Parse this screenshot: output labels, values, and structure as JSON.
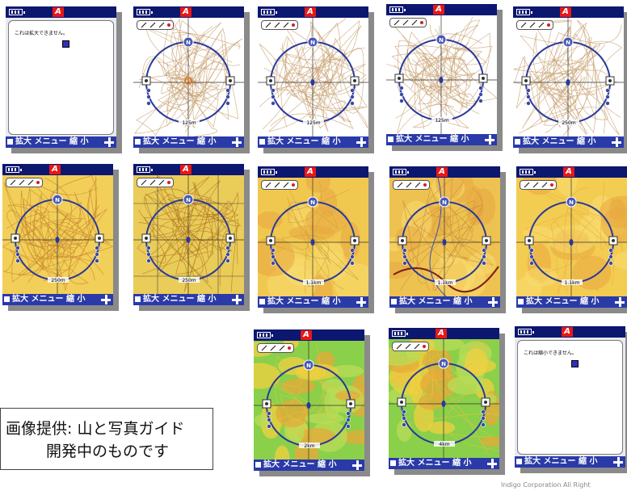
{
  "screens": [
    {
      "kind": "message",
      "message": "これは拡大できません。"
    },
    {
      "kind": "map",
      "style": "contour-white",
      "scale": "125m",
      "center_marker": "orange-circle"
    },
    {
      "kind": "map",
      "style": "contour-white",
      "scale": "125m",
      "center_marker": "blue"
    },
    {
      "kind": "map",
      "style": "contour-white",
      "scale": "125m",
      "center_marker": "blue"
    },
    {
      "kind": "map",
      "style": "contour-white",
      "scale": "250m",
      "center_marker": "blue"
    },
    {
      "kind": "map",
      "style": "contour-yellow",
      "scale": "250m",
      "center_marker": "blue"
    },
    {
      "kind": "map",
      "style": "contour-yellow-grid",
      "scale": "250m",
      "center_marker": "blue"
    },
    {
      "kind": "map",
      "style": "yellow-labels",
      "scale": "1.1km",
      "center_marker": "blue"
    },
    {
      "kind": "map",
      "style": "yellow-roads",
      "scale": "1.1km",
      "center_marker": "blue"
    },
    {
      "kind": "map",
      "style": "yellow-plain",
      "scale": "1.1km",
      "center_marker": "blue"
    },
    {
      "kind": "map",
      "style": "green-relief",
      "scale": "2km",
      "center_marker": "blue"
    },
    {
      "kind": "map",
      "style": "green-relief",
      "scale": "4km",
      "center_marker": "blue"
    },
    {
      "kind": "message",
      "message": "これは縮小できません。"
    }
  ],
  "common": {
    "bottom_menu_label": "拡大 メニュー 縮 小",
    "top_logo": "A",
    "compass_north": "N",
    "icons": [
      "battery-icon",
      "brand-logo-icon",
      "plus-icon",
      "tool-icon"
    ]
  },
  "colors": {
    "top_bar": "#0c1770",
    "bottom_bar": "#2a3aa8",
    "logo_red": "#e81818",
    "compass_ring": "#2a3a9a"
  },
  "caption": {
    "line1": "画像提供: 山と写真ガイド",
    "line2": "開発中のものです"
  },
  "copyright": "Indigo Corporation All Right"
}
